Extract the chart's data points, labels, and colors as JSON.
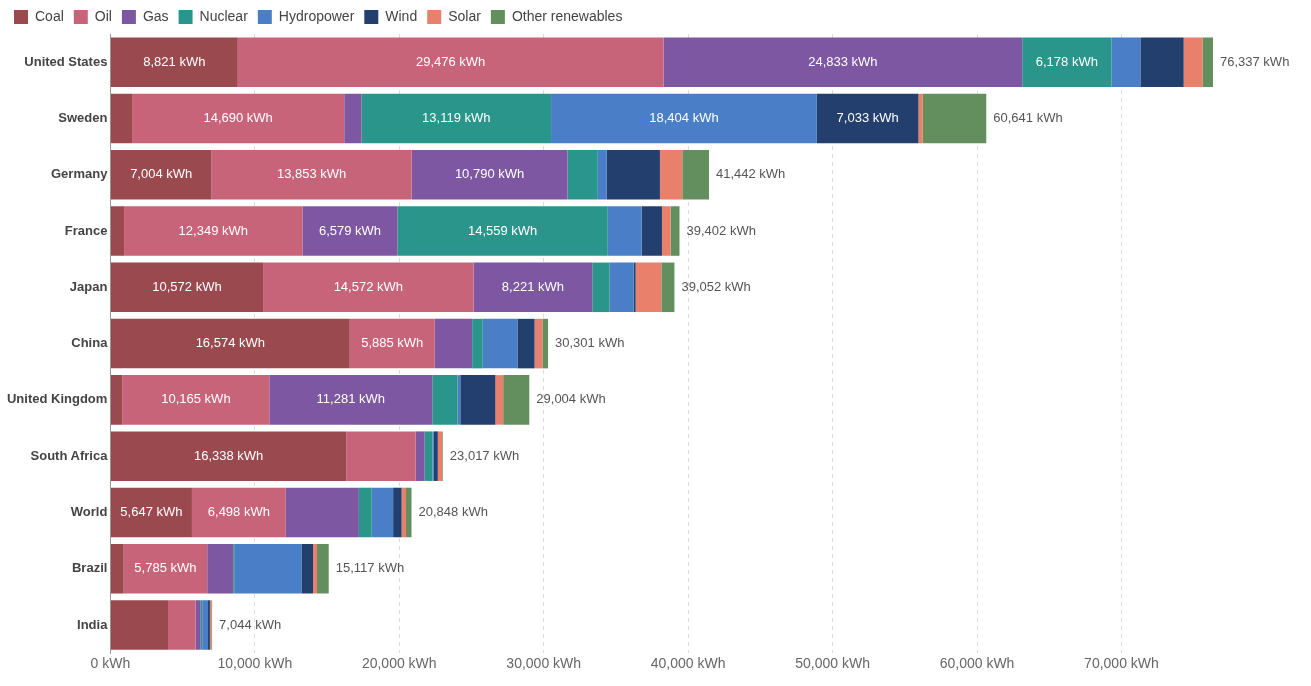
{
  "chart_data": {
    "type": "bar",
    "orientation": "horizontal",
    "stacked": true,
    "legend": "top left",
    "grid": "x",
    "categories": [
      "United States",
      "Sweden",
      "Germany",
      "France",
      "Japan",
      "China",
      "United Kingdom",
      "South Africa",
      "World",
      "Brazil",
      "India"
    ],
    "series": [
      {
        "name": "Coal",
        "color": "#9a4a4f",
        "values": [
          8821,
          1500,
          7004,
          950,
          10572,
          16574,
          840,
          16338,
          5647,
          920,
          3990
        ],
        "value_labels": [
          "8,821 kWh",
          null,
          "7,004 kWh",
          null,
          "10,572 kWh",
          "16,574 kWh",
          null,
          "16,338 kWh",
          "5,647 kWh",
          null,
          null
        ]
      },
      {
        "name": "Oil",
        "color": "#c8647a",
        "values": [
          29476,
          14690,
          13853,
          12349,
          14572,
          5885,
          10165,
          4800,
          6498,
          5785,
          1910
        ],
        "value_labels": [
          "29,476 kWh",
          "14,690 kWh",
          "13,853 kWh",
          "12,349 kWh",
          "14,572 kWh",
          "5,885 kWh",
          "10,165 kWh",
          null,
          "6,498 kWh",
          "5,785 kWh",
          null
        ]
      },
      {
        "name": "Gas",
        "color": "#7e57a3",
        "values": [
          24833,
          1200,
          10790,
          6579,
          8221,
          2590,
          11281,
          620,
          5060,
          1800,
          350
        ],
        "value_labels": [
          "24,833 kWh",
          null,
          "10,790 kWh",
          "6,579 kWh",
          "8,221 kWh",
          null,
          "11,281 kWh",
          null,
          null,
          null,
          null
        ]
      },
      {
        "name": "Nuclear",
        "color": "#2a968b",
        "values": [
          6178,
          13119,
          2100,
          14559,
          1200,
          730,
          1750,
          540,
          890,
          110,
          110
        ],
        "value_labels": [
          "6,178 kWh",
          "13,119 kWh",
          null,
          "14,559 kWh",
          null,
          null,
          null,
          null,
          null,
          null,
          null
        ]
      },
      {
        "name": "Hydropower",
        "color": "#4a7fc8",
        "values": [
          2000,
          18404,
          600,
          2350,
          1670,
          2400,
          190,
          100,
          1480,
          4610,
          400
        ],
        "value_labels": [
          null,
          "18,404 kWh",
          null,
          null,
          null,
          null,
          null,
          null,
          null,
          null,
          null
        ]
      },
      {
        "name": "Wind",
        "color": "#233f6e",
        "values": [
          3000,
          7033,
          3700,
          1400,
          130,
          1190,
          2430,
          270,
          590,
          810,
          130
        ],
        "value_labels": [
          null,
          "7,033 kWh",
          null,
          null,
          null,
          null,
          null,
          null,
          null,
          null,
          null
        ]
      },
      {
        "name": "Solar",
        "color": "#e8806b",
        "values": [
          1300,
          300,
          1550,
          600,
          1780,
          540,
          540,
          300,
          300,
          270,
          100
        ],
        "value_labels": [
          null,
          null,
          null,
          null,
          null,
          null,
          null,
          null,
          null,
          null,
          null
        ]
      },
      {
        "name": "Other renewables",
        "color": "#628f5d",
        "values": [
          729,
          4395,
          1845,
          615,
          907,
          392,
          1808,
          49,
          383,
          812,
          54
        ],
        "value_labels": [
          null,
          null,
          null,
          null,
          null,
          null,
          null,
          null,
          null,
          null,
          null
        ]
      }
    ],
    "totals": [
      "76,337 kWh",
      "60,641 kWh",
      "41,442 kWh",
      "39,402 kWh",
      "39,052 kWh",
      "30,301 kWh",
      "29,004 kWh",
      "23,017 kWh",
      "20,848 kWh",
      "15,117 kWh",
      "7,044 kWh"
    ],
    "xlim": [
      0,
      76337
    ],
    "xticks": [
      {
        "value": 0,
        "label": "0 kWh"
      },
      {
        "value": 10000,
        "label": "10,000 kWh"
      },
      {
        "value": 20000,
        "label": "20,000 kWh"
      },
      {
        "value": 30000,
        "label": "30,000 kWh"
      },
      {
        "value": 40000,
        "label": "40,000 kWh"
      },
      {
        "value": 50000,
        "label": "50,000 kWh"
      },
      {
        "value": 60000,
        "label": "60,000 kWh"
      },
      {
        "value": 70000,
        "label": "70,000 kWh"
      }
    ]
  }
}
